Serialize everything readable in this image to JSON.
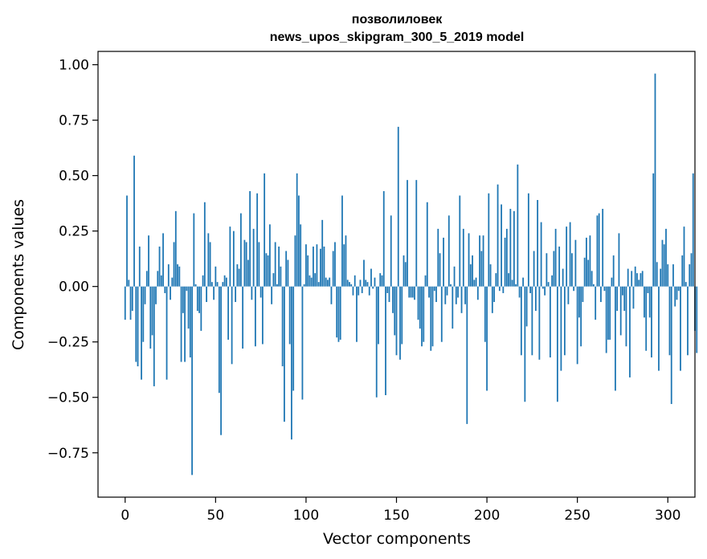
{
  "chart_data": {
    "type": "bar",
    "title_line1": "позволиловек",
    "title_line2": "news_upos_skipgram_300_5_2019 model",
    "xlabel": "Vector components",
    "ylabel": "Components values",
    "xlim": [
      -15,
      315
    ],
    "ylim": [
      -0.95,
      1.06
    ],
    "x_ticks": [
      0,
      50,
      100,
      150,
      200,
      250,
      300
    ],
    "x_tick_labels": [
      "0",
      "50",
      "100",
      "150",
      "200",
      "250",
      "300"
    ],
    "y_ticks": [
      1.0,
      0.75,
      0.5,
      0.25,
      0.0,
      -0.25,
      -0.5,
      -0.75
    ],
    "y_tick_labels": [
      "1.00",
      "0.75",
      "0.50",
      "0.25",
      "0.00",
      "−0.25",
      "−0.50",
      "−0.75"
    ],
    "bar_color": "#1f77b4",
    "values": [
      -0.15,
      0.41,
      0.03,
      -0.15,
      -0.11,
      0.59,
      -0.34,
      -0.36,
      0.18,
      -0.42,
      -0.25,
      -0.08,
      0.07,
      0.23,
      -0.28,
      -0.22,
      -0.45,
      -0.08,
      0.07,
      0.18,
      0.05,
      0.24,
      -0.03,
      -0.42,
      0.1,
      -0.06,
      0.04,
      0.2,
      0.34,
      0.1,
      0.09,
      -0.34,
      -0.12,
      -0.34,
      -0.02,
      -0.19,
      -0.32,
      -0.85,
      0.33,
      0.01,
      -0.11,
      -0.12,
      -0.2,
      0.05,
      0.38,
      -0.07,
      0.24,
      0.2,
      0.02,
      -0.06,
      0.09,
      0.02,
      -0.48,
      -0.67,
      0.02,
      0.05,
      0.04,
      -0.24,
      0.27,
      -0.35,
      0.25,
      -0.07,
      0.1,
      0.08,
      0.33,
      -0.28,
      0.21,
      0.2,
      0.12,
      0.43,
      -0.06,
      0.26,
      -0.27,
      0.42,
      0.2,
      -0.05,
      -0.26,
      0.51,
      0.15,
      0.14,
      0.28,
      -0.08,
      0.06,
      0.2,
      0.01,
      0.18,
      0.09,
      -0.36,
      -0.61,
      0.16,
      0.12,
      -0.26,
      -0.69,
      -0.47,
      0.23,
      0.51,
      0.41,
      0.28,
      -0.51,
      0.01,
      0.19,
      0.14,
      0.05,
      0.04,
      0.18,
      0.06,
      0.19,
      0.02,
      0.17,
      0.3,
      0.18,
      0.04,
      0.03,
      0.04,
      -0.08,
      0.16,
      0.2,
      -0.23,
      -0.25,
      -0.24,
      0.41,
      0.19,
      0.23,
      0.03,
      0.02,
      0.01,
      -0.04,
      0.05,
      -0.25,
      -0.04,
      0.03,
      -0.03,
      0.12,
      0.03,
      0.02,
      -0.04,
      0.08,
      -0.01,
      0.04,
      -0.5,
      -0.26,
      0.06,
      0.05,
      0.43,
      -0.49,
      -0.03,
      -0.07,
      0.32,
      -0.12,
      -0.22,
      -0.31,
      0.72,
      -0.33,
      -0.26,
      0.14,
      0.11,
      0.48,
      -0.05,
      -0.05,
      -0.05,
      -0.06,
      0.48,
      -0.15,
      -0.19,
      -0.27,
      -0.25,
      0.05,
      0.38,
      -0.05,
      -0.29,
      -0.27,
      -0.02,
      -0.07,
      0.26,
      0.15,
      -0.25,
      0.22,
      -0.08,
      -0.04,
      0.32,
      0.01,
      -0.19,
      0.09,
      -0.08,
      -0.05,
      0.41,
      -0.12,
      0.26,
      -0.08,
      -0.62,
      0.24,
      0.1,
      0.14,
      0.03,
      0.04,
      -0.06,
      0.23,
      0.16,
      0.23,
      -0.25,
      -0.47,
      0.42,
      0.1,
      -0.12,
      -0.07,
      0.06,
      0.46,
      -0.02,
      0.37,
      -0.03,
      0.22,
      0.26,
      0.06,
      0.35,
      0.03,
      0.34,
      0.01,
      0.55,
      -0.05,
      -0.31,
      0.04,
      -0.52,
      -0.18,
      0.42,
      -0.03,
      -0.31,
      0.16,
      -0.11,
      0.39,
      -0.33,
      0.29,
      -0.01,
      -0.04,
      0.15,
      0.02,
      -0.32,
      0.05,
      0.16,
      0.26,
      -0.52,
      0.18,
      -0.38,
      0.08,
      -0.31,
      0.27,
      -0.08,
      0.29,
      0.15,
      -0.02,
      0.21,
      -0.35,
      -0.14,
      -0.27,
      -0.07,
      0.13,
      0.22,
      0.12,
      0.23,
      0.07,
      0.01,
      -0.15,
      0.32,
      0.33,
      -0.07,
      0.35,
      -0.02,
      -0.3,
      -0.24,
      -0.24,
      0.04,
      0.14,
      -0.47,
      -0.11,
      0.24,
      -0.22,
      -0.04,
      -0.11,
      -0.27,
      0.08,
      -0.41,
      0.07,
      -0.1,
      0.09,
      0.06,
      0.03,
      0.06,
      0.07,
      -0.14,
      -0.29,
      -0.03,
      -0.14,
      -0.32,
      0.51,
      0.96,
      0.11,
      -0.38,
      0.08,
      0.21,
      0.19,
      0.26,
      0.1,
      -0.31,
      -0.53,
      0.1,
      -0.09,
      -0.06,
      -0.02,
      -0.38,
      0.14,
      0.27,
      0.02,
      -0.31,
      0.1,
      0.15,
      0.51,
      -0.2,
      -0.3
    ]
  }
}
